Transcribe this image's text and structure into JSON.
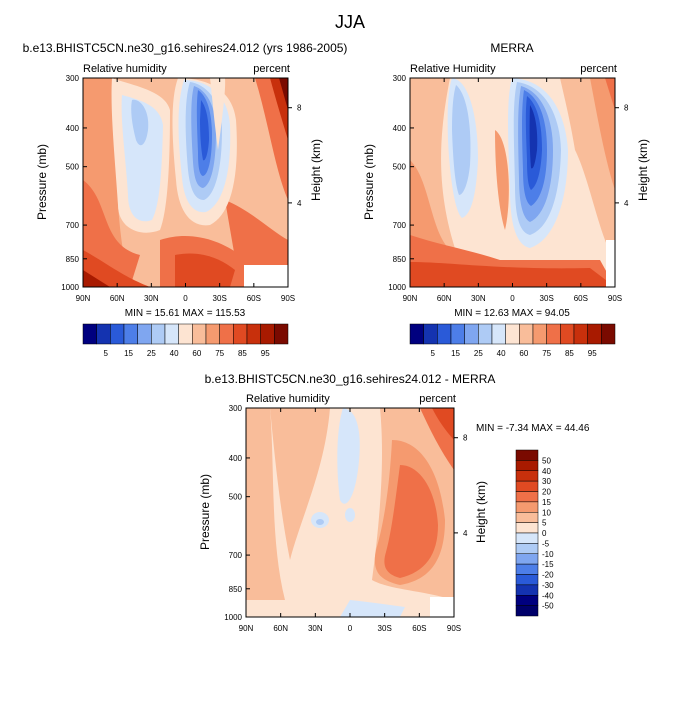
{
  "page_title": "JJA",
  "chart_data": [
    {
      "type": "heatmap",
      "title": "b.e13.BHISTC5CN.ne30_g16.sehires24.012 (yrs 1986-2005)",
      "left_label": "Relative humidity",
      "right_label": "percent",
      "ylabel": "Pressure (mb)",
      "ylabel_right": "Height (km)",
      "x_ticks": [
        "90N",
        "60N",
        "30N",
        "0",
        "30S",
        "60S",
        "90S"
      ],
      "y_ticks": [
        "300",
        "400",
        "500",
        "700",
        "850",
        "1000"
      ],
      "y_right_ticks": [
        "8",
        "4"
      ],
      "stats": "MIN = 15.61  MAX = 115.53",
      "colorbar_labels": [
        "5",
        "15",
        "25",
        "40",
        "60",
        "75",
        "85",
        "95"
      ],
      "colorbar_colors": [
        "#00007f",
        "#1433b0",
        "#2a5ad8",
        "#4d7ee8",
        "#7fa6f0",
        "#aecbf5",
        "#d6e6fa",
        "#fde4d2",
        "#f9bd9a",
        "#f59a6f",
        "#ef7048",
        "#e04a22",
        "#c8300c",
        "#a81a00",
        "#7a0a00"
      ]
    },
    {
      "type": "heatmap",
      "title": "MERRA",
      "left_label": "Relative Humidity",
      "right_label": "percent",
      "ylabel": "Pressure (mb)",
      "ylabel_right": "Height (km)",
      "x_ticks": [
        "90N",
        "60N",
        "30N",
        "0",
        "30S",
        "60S",
        "90S"
      ],
      "y_ticks": [
        "300",
        "400",
        "500",
        "700",
        "850",
        "1000"
      ],
      "y_right_ticks": [
        "8",
        "4"
      ],
      "stats": "MIN = 12.63  MAX = 94.05",
      "colorbar_labels": [
        "5",
        "15",
        "25",
        "40",
        "60",
        "75",
        "85",
        "95"
      ],
      "colorbar_colors": [
        "#00007f",
        "#1433b0",
        "#2a5ad8",
        "#4d7ee8",
        "#7fa6f0",
        "#aecbf5",
        "#d6e6fa",
        "#fde4d2",
        "#f9bd9a",
        "#f59a6f",
        "#ef7048",
        "#e04a22",
        "#c8300c",
        "#a81a00",
        "#7a0a00"
      ]
    },
    {
      "type": "heatmap",
      "title": "b.e13.BHISTC5CN.ne30_g16.sehires24.012 - MERRA",
      "left_label": "Relative humidity",
      "right_label": "percent",
      "ylabel": "Pressure (mb)",
      "ylabel_right": "Height (km)",
      "x_ticks": [
        "90N",
        "60N",
        "30N",
        "0",
        "30S",
        "60S",
        "90S"
      ],
      "y_ticks": [
        "300",
        "400",
        "500",
        "700",
        "850",
        "1000"
      ],
      "y_right_ticks": [
        "8",
        "4"
      ],
      "stats": "MIN = -7.34  MAX = 44.46",
      "colorbar_labels": [
        "50",
        "40",
        "30",
        "20",
        "15",
        "10",
        "5",
        "0",
        "-5",
        "-10",
        "-15",
        "-20",
        "-30",
        "-40",
        "-50"
      ],
      "colorbar_colors": [
        "#7a0a00",
        "#a81a00",
        "#c8300c",
        "#e04a22",
        "#ef7048",
        "#f59a6f",
        "#f9bd9a",
        "#fde4d2",
        "#d6e6fa",
        "#aecbf5",
        "#7fa6f0",
        "#4d7ee8",
        "#2a5ad8",
        "#1433b0",
        "#00007f",
        "#00006a"
      ]
    }
  ]
}
